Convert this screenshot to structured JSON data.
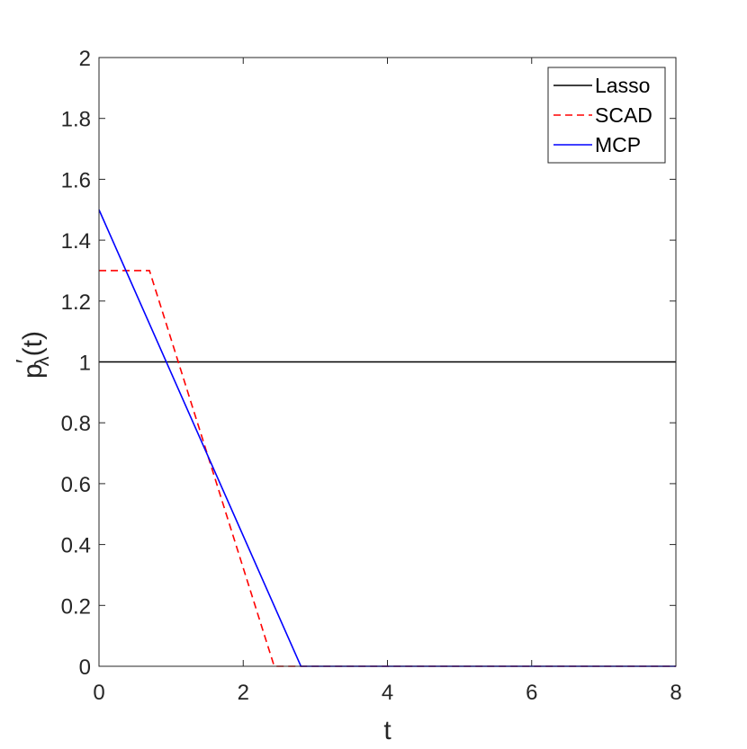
{
  "chart_data": {
    "type": "line",
    "xlabel": "t",
    "ylabel_main": "p",
    "ylabel_prime": "′",
    "ylabel_sub": "λ",
    "ylabel_args": "(t)",
    "xlim": [
      0,
      8
    ],
    "ylim": [
      0,
      2
    ],
    "xticks": [
      0,
      2,
      4,
      6,
      8
    ],
    "yticks": [
      0,
      0.2,
      0.4,
      0.6,
      0.8,
      1,
      1.2,
      1.4,
      1.6,
      1.8,
      2
    ],
    "xtick_labels": [
      "0",
      "2",
      "4",
      "6",
      "8"
    ],
    "ytick_labels": [
      "0",
      "0.2",
      "0.4",
      "0.6",
      "0.8",
      "1",
      "1.2",
      "1.4",
      "1.6",
      "1.8",
      "2"
    ],
    "grid": false,
    "legend_position": "top-right",
    "series": [
      {
        "name": "Lasso",
        "color": "#000000",
        "dash": "solid",
        "x": [
          0,
          8
        ],
        "y": [
          1,
          1
        ]
      },
      {
        "name": "SCAD",
        "color": "#ff0000",
        "dash": "dashed",
        "x": [
          0,
          0.7,
          2.43,
          8
        ],
        "y": [
          1.3,
          1.3,
          0,
          0
        ]
      },
      {
        "name": "MCP",
        "color": "#0000ff",
        "dash": "solid",
        "x": [
          0,
          2.8,
          8
        ],
        "y": [
          1.5,
          0,
          0
        ]
      }
    ]
  }
}
